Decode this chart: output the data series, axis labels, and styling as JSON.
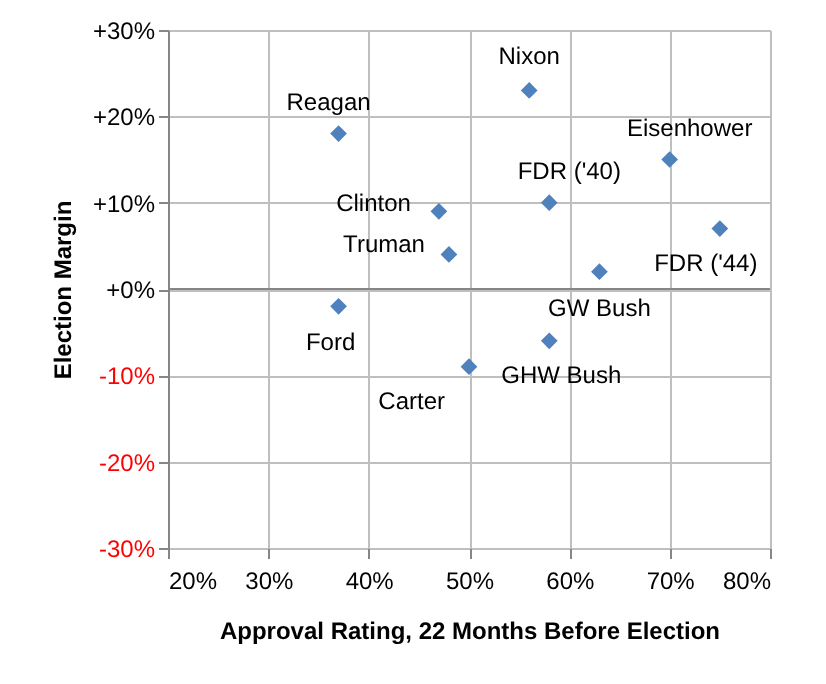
{
  "chart_data": {
    "type": "scatter",
    "xlabel": "Approval Rating, 22 Months Before Election",
    "ylabel": "Election Margin",
    "series": [
      {
        "color": "#4f81bd",
        "x": [
          37,
          56,
          70,
          58,
          47,
          48,
          75,
          63,
          37,
          58,
          50
        ],
        "values": [
          18,
          23,
          15,
          10,
          9,
          4,
          7,
          2,
          -2,
          -6,
          -9
        ]
      }
    ],
    "annotations": [
      {
        "text": "Reagan",
        "x": 37,
        "y": 18
      },
      {
        "text": "Nixon",
        "x": 56,
        "y": 23
      },
      {
        "text": "Eisenhower",
        "x": 70,
        "y": 15
      },
      {
        "text": "FDR ('40)",
        "x": 58,
        "y": 10
      },
      {
        "text": "Clinton",
        "x": 47,
        "y": 9
      },
      {
        "text": "Truman",
        "x": 48,
        "y": 4
      },
      {
        "text": "FDR ('44)",
        "x": 75,
        "y": 7
      },
      {
        "text": "GW  Bush",
        "x": 63,
        "y": 2
      },
      {
        "text": "Ford",
        "x": 37,
        "y": -2
      },
      {
        "text": "GHW Bush",
        "x": 58,
        "y": -6
      },
      {
        "text": "Carter",
        "x": 50,
        "y": -9
      }
    ],
    "xlim": [
      20,
      80
    ],
    "xticks": [
      {
        "value": 20,
        "label": "20%"
      },
      {
        "value": 30,
        "label": "30%"
      },
      {
        "value": 40,
        "label": "40%"
      },
      {
        "value": 50,
        "label": "50%"
      },
      {
        "value": 60,
        "label": "60%"
      },
      {
        "value": 70,
        "label": "70%"
      },
      {
        "value": 80,
        "label": "80%"
      }
    ],
    "ylim": [
      -30,
      30
    ],
    "yticks": [
      {
        "value": -30,
        "label": "-30%"
      },
      {
        "value": -20,
        "label": "-20%"
      },
      {
        "value": -10,
        "label": "-10%"
      },
      {
        "value": 0,
        "label": "+0%"
      },
      {
        "value": 10,
        "label": "+10%"
      },
      {
        "value": 20,
        "label": "+20%"
      },
      {
        "value": 30,
        "label": "+30%"
      }
    ],
    "grid": true,
    "marker": "diamond"
  }
}
